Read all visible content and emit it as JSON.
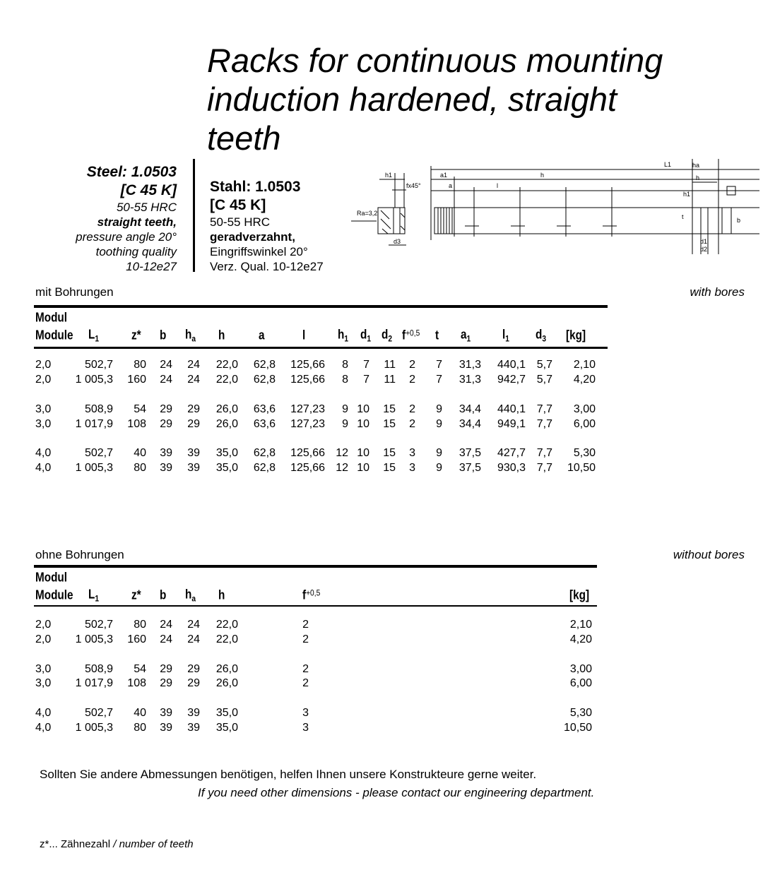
{
  "title": [
    "Racks for continuous mounting",
    "induction hardened, straight",
    "teeth"
  ],
  "spec_en": {
    "steel": "Steel: 1.0503",
    "grade": "[C 45 K]",
    "hardness": "50-55 HRC",
    "teeth": "straight teeth,",
    "angle": "pressure angle 20°",
    "quality_label": "toothing quality",
    "quality": "10-12e27"
  },
  "spec_de": {
    "steel": "Stahl: 1.0503",
    "grade": "[C 45 K]",
    "hardness": "50-55 HRC",
    "teeth": "geradverzahnt,",
    "angle": "Eingriffswinkel 20°",
    "quality": "Verz. Qual. 10-12e27"
  },
  "drawing_labels": {
    "h1": "h1",
    "chamfer": "fx45°",
    "ra": "Ra=3,2",
    "d3": "d3",
    "L1": "L1",
    "a1": "a1",
    "h": "h",
    "a": "a",
    "l": "l",
    "ha": "ha",
    "t": "t",
    "b": "b",
    "d1": "d1",
    "d2": "d2"
  },
  "table_bores": {
    "label_de": "mit Bohrungen",
    "label_en": "with bores",
    "header_top": "Modul",
    "headers": [
      "Module",
      "L",
      "z*",
      "b",
      "h",
      "h",
      "a",
      "l",
      "h",
      "d",
      "d",
      "f",
      "t",
      "a",
      "l",
      "d",
      "[kg]"
    ],
    "header_subs": [
      "",
      "1",
      "",
      "",
      "a",
      "",
      "",
      "",
      "1",
      "1",
      "2",
      "+0,5",
      "",
      "1",
      "1",
      "3",
      ""
    ],
    "rows": [
      [
        "2,0",
        "502,7",
        "80",
        "24",
        "24",
        "22,0",
        "62,8",
        "125,66",
        "8",
        "7",
        "11",
        "2",
        "7",
        "31,3",
        "440,1",
        "5,7",
        "2,10"
      ],
      [
        "2,0",
        "1 005,3",
        "160",
        "24",
        "24",
        "22,0",
        "62,8",
        "125,66",
        "8",
        "7",
        "11",
        "2",
        "7",
        "31,3",
        "942,7",
        "5,7",
        "4,20"
      ],
      [
        "3,0",
        "508,9",
        "54",
        "29",
        "29",
        "26,0",
        "63,6",
        "127,23",
        "9",
        "10",
        "15",
        "2",
        "9",
        "34,4",
        "440,1",
        "7,7",
        "3,00"
      ],
      [
        "3,0",
        "1 017,9",
        "108",
        "29",
        "29",
        "26,0",
        "63,6",
        "127,23",
        "9",
        "10",
        "15",
        "2",
        "9",
        "34,4",
        "949,1",
        "7,7",
        "6,00"
      ],
      [
        "4,0",
        "502,7",
        "40",
        "39",
        "39",
        "35,0",
        "62,8",
        "125,66",
        "12",
        "10",
        "15",
        "3",
        "9",
        "37,5",
        "427,7",
        "7,7",
        "5,30"
      ],
      [
        "4,0",
        "1 005,3",
        "80",
        "39",
        "39",
        "35,0",
        "62,8",
        "125,66",
        "12",
        "10",
        "15",
        "3",
        "9",
        "37,5",
        "930,3",
        "7,7",
        "10,50"
      ]
    ]
  },
  "table_plain": {
    "label_de": "ohne Bohrungen",
    "label_en": "without bores",
    "header_top": "Modul",
    "headers": [
      "Module",
      "L",
      "z*",
      "b",
      "h",
      "h",
      "f",
      "[kg]"
    ],
    "header_subs": [
      "",
      "1",
      "",
      "",
      "a",
      "",
      "+0,5",
      ""
    ],
    "rows": [
      [
        "2,0",
        "502,7",
        "80",
        "24",
        "24",
        "22,0",
        "2",
        "2,10"
      ],
      [
        "2,0",
        "1 005,3",
        "160",
        "24",
        "24",
        "22,0",
        "2",
        "4,20"
      ],
      [
        "3,0",
        "508,9",
        "54",
        "29",
        "29",
        "26,0",
        "2",
        "3,00"
      ],
      [
        "3,0",
        "1 017,9",
        "108",
        "29",
        "29",
        "26,0",
        "2",
        "6,00"
      ],
      [
        "4,0",
        "502,7",
        "40",
        "39",
        "39",
        "35,0",
        "3",
        "5,30"
      ],
      [
        "4,0",
        "1 005,3",
        "80",
        "39",
        "39",
        "35,0",
        "3",
        "10,50"
      ]
    ]
  },
  "note_de": "Sollten Sie andere Abmessungen benötigen, helfen Ihnen unsere Konstrukteure gerne weiter.",
  "note_en": "If you need other dimensions - please contact our engineering department.",
  "footnote_de": "z*... Zähnezahl",
  "footnote_en": "/ number of teeth"
}
